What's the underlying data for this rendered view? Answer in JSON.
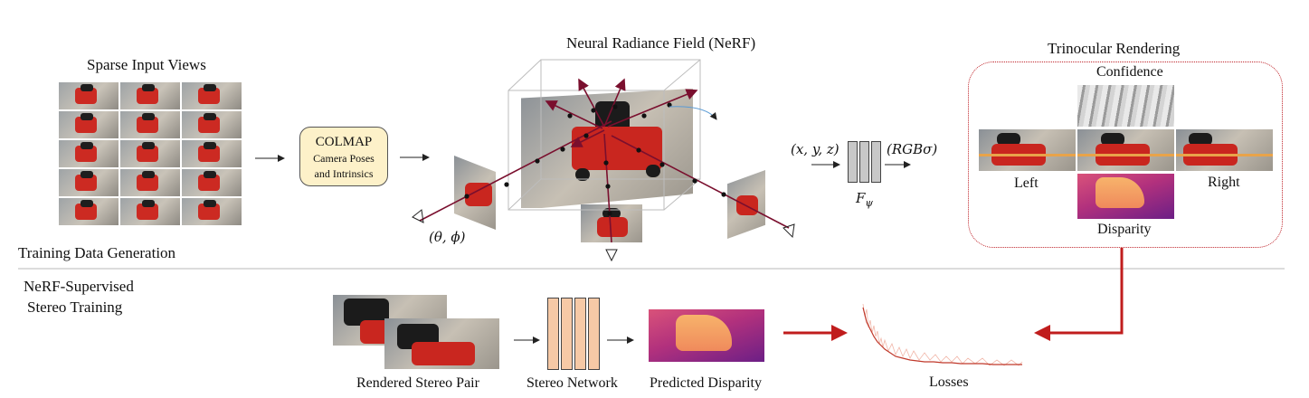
{
  "labels": {
    "sparse_input_views": "Sparse Input Views",
    "colmap_title": "COLMAP",
    "colmap_subtitle_1": "Camera Poses",
    "colmap_subtitle_2": "and Intrinsics",
    "nerf_title": "Neural Radiance Field (NeRF)",
    "view_angles": "(θ, ϕ)",
    "xyz": "(x, y, z)",
    "rgb_sigma": "(RGBσ)",
    "f_psi": "F",
    "f_psi_sub": "ψ",
    "trinocular_rendering": "Trinocular Rendering",
    "confidence": "Confidence",
    "left": "Left",
    "right": "Right",
    "disparity": "Disparity",
    "training_data_generation": "Training Data Generation",
    "nerf_supervised_1": "NeRF-Supervised",
    "nerf_supervised_2": "Stereo Training",
    "rendered_stereo_pair": "Rendered Stereo Pair",
    "stereo_network": "Stereo Network",
    "predicted_disparity": "Predicted Disparity",
    "losses": "Losses"
  },
  "colors": {
    "arrow_dark_red": "#7a0f2e",
    "arrow_red": "#c01d1d",
    "colmap_fill": "#fdf1c9",
    "stereo_net_fill": "#f6c9a6",
    "f_psi_fill": "#c8c8c8",
    "loss_curve": "#c0392b",
    "dotted_border": "#c0262c"
  }
}
